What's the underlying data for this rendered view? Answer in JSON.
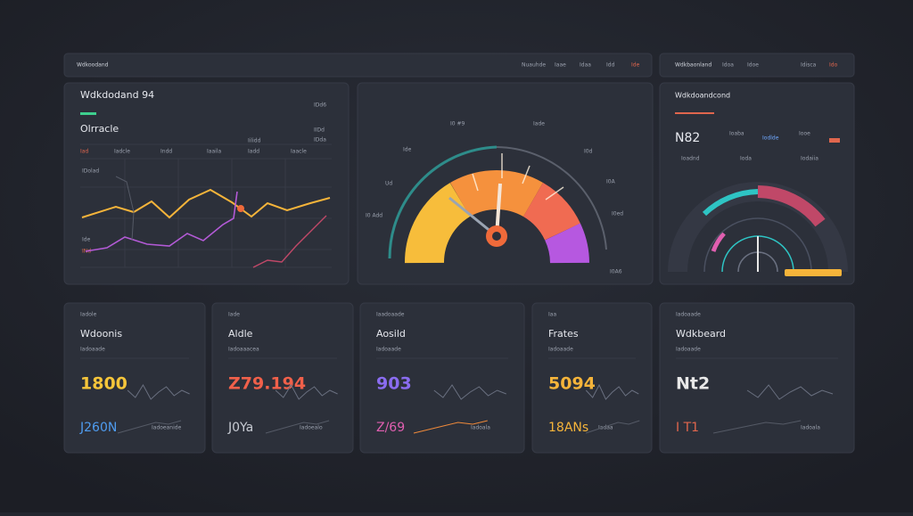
{
  "topbar": {
    "left_title": "Wdkoodand",
    "left_links": [
      "Nuauhde",
      "Iaae",
      "Idaa",
      "Idd",
      "Ide"
    ],
    "right_title": "Wdkbaonland",
    "right_links": [
      "Idoa",
      "Idoe",
      "Idisca",
      "Ido"
    ]
  },
  "trend_panel": {
    "title": "Wdkdodand 94",
    "tag": "IDd6",
    "subtitle": "Olrracle",
    "side": [
      "IIDd",
      "IDda"
    ],
    "legend": [
      "Iad",
      "Iadcle",
      "Indd",
      "Iaaila",
      "Iilidd",
      "Iadd",
      "Iaacle"
    ],
    "axis": [
      "IDolad",
      "Ide",
      "INd"
    ]
  },
  "gauge_panel": {
    "labels": [
      "I0 #9",
      "Iade",
      "Ide",
      "I0d",
      "Ud",
      "I0A",
      "I0 Add",
      "I0ed",
      "I0A6"
    ]
  },
  "summary_panel": {
    "title": "Wdkdoandcond",
    "value": "N82",
    "rows": [
      "Ioaba",
      "Iodlde",
      "Iooe",
      "Ioadnd",
      "Ioda",
      "Iodaiia"
    ]
  },
  "cards": [
    {
      "tag": "Iadole",
      "title": "Wdoonis",
      "note": "Iadoaade",
      "value": "1800",
      "value2": "J260N",
      "foot": "Iadoeanide"
    },
    {
      "tag": "Iade",
      "title": "Aldle",
      "note": "Iadoaaacea",
      "value": "Z79.194",
      "value2": "J0Ya",
      "foot": "Iadoealo"
    },
    {
      "tag": "Iaadoaade",
      "title": "Aosild",
      "note": "Iadoaade",
      "value": "903",
      "value2": "Z/69",
      "foot": "Iadoala"
    },
    {
      "tag": "Iaa",
      "title": "Frates",
      "note": "Iadoaade",
      "value": "5094",
      "value2": "18ANs",
      "foot": "Iadaa"
    },
    {
      "tag": "Iadoaade",
      "title": "Wdkbeard",
      "note": "Iadoaade",
      "value": "Nt2",
      "value2": "I T1",
      "foot": "Iadoala"
    }
  ]
}
